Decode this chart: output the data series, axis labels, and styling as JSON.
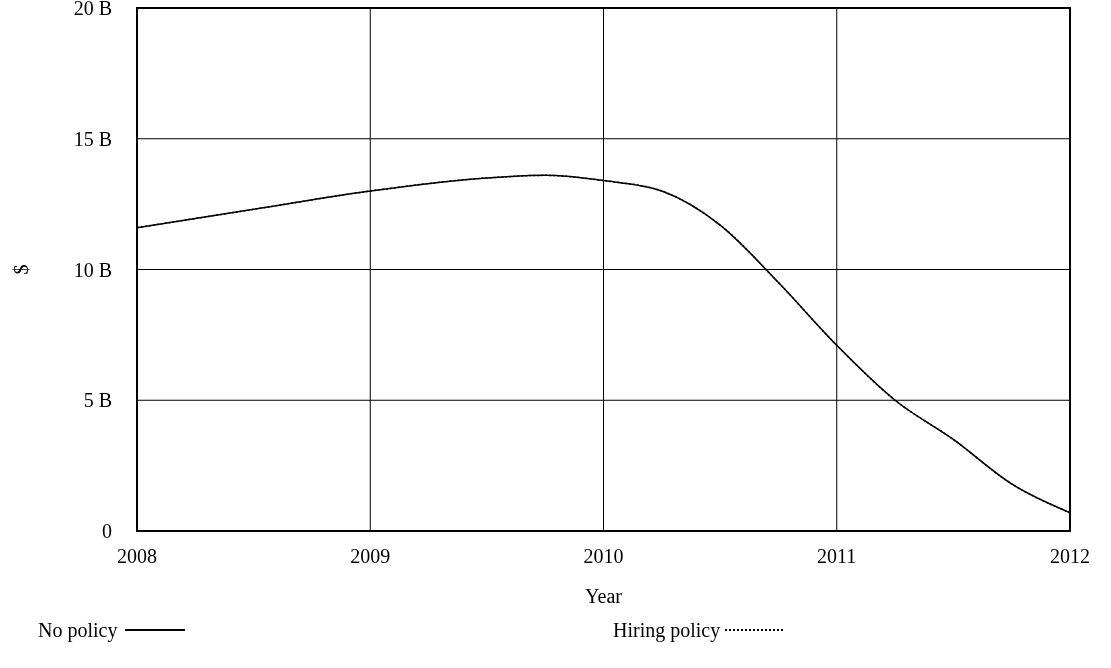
{
  "chart_data": {
    "type": "line",
    "xlabel": "Year",
    "ylabel": "$",
    "xlim": [
      2008,
      2012
    ],
    "ylim": [
      0,
      20
    ],
    "xticks": [
      2008,
      2009,
      2010,
      2011,
      2012
    ],
    "yticks": [
      {
        "value": 0,
        "label": "0"
      },
      {
        "value": 5,
        "label": "5 B"
      },
      {
        "value": 10,
        "label": "10 B"
      },
      {
        "value": 15,
        "label": "15 B"
      },
      {
        "value": 20,
        "label": "20 B"
      }
    ],
    "grid": true,
    "legend": "bottom",
    "x": [
      2008,
      2008.5,
      2009,
      2009.5,
      2009.75,
      2010,
      2010.25,
      2010.5,
      2010.75,
      2011,
      2011.25,
      2011.5,
      2011.75,
      2012
    ],
    "series": [
      {
        "name": "No policy",
        "color": "#000000",
        "line_style": "solid",
        "values": [
          11.6,
          12.3,
          13.0,
          13.5,
          13.6,
          13.4,
          13.0,
          11.7,
          9.5,
          7.1,
          5.0,
          3.5,
          1.8,
          0.7
        ]
      },
      {
        "name": "Hiring policy",
        "color": "#000000",
        "line_style": "dotted",
        "values": [
          11.6,
          12.3,
          13.0,
          13.5,
          13.6,
          13.4,
          13.0,
          11.7,
          9.5,
          7.1,
          5.0,
          3.5,
          1.8,
          0.7
        ]
      }
    ]
  }
}
